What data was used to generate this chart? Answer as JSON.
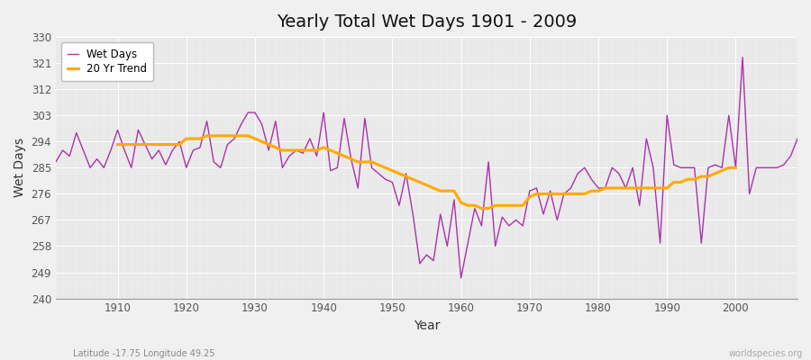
{
  "title": "Yearly Total Wet Days 1901 - 2009",
  "xlabel": "Year",
  "ylabel": "Wet Days",
  "footnote_left": "Latitude -17.75 Longitude 49.25",
  "footnote_right": "worldspecies.org",
  "ylim": [
    240,
    330
  ],
  "yticks": [
    240,
    249,
    258,
    267,
    276,
    285,
    294,
    303,
    312,
    321,
    330
  ],
  "xlim": [
    1901,
    2009
  ],
  "xticks": [
    1910,
    1920,
    1930,
    1940,
    1950,
    1960,
    1970,
    1980,
    1990,
    2000
  ],
  "wet_days_color": "#aa33aa",
  "trend_color": "#ffaa00",
  "background_color": "#e8e8e8",
  "fig_color": "#f0f0f0",
  "legend_wet": "Wet Days",
  "legend_trend": "20 Yr Trend",
  "years": [
    1901,
    1902,
    1903,
    1904,
    1905,
    1906,
    1907,
    1908,
    1909,
    1910,
    1911,
    1912,
    1913,
    1914,
    1915,
    1916,
    1917,
    1918,
    1919,
    1920,
    1921,
    1922,
    1923,
    1924,
    1925,
    1926,
    1927,
    1928,
    1929,
    1930,
    1931,
    1932,
    1933,
    1934,
    1935,
    1936,
    1937,
    1938,
    1939,
    1940,
    1941,
    1942,
    1943,
    1944,
    1945,
    1946,
    1947,
    1948,
    1949,
    1950,
    1951,
    1952,
    1953,
    1954,
    1955,
    1956,
    1957,
    1958,
    1959,
    1960,
    1961,
    1962,
    1963,
    1964,
    1965,
    1966,
    1967,
    1968,
    1969,
    1970,
    1971,
    1972,
    1973,
    1974,
    1975,
    1976,
    1977,
    1978,
    1979,
    1980,
    1981,
    1982,
    1983,
    1984,
    1985,
    1986,
    1987,
    1988,
    1989,
    1990,
    1991,
    1992,
    1993,
    1994,
    1995,
    1996,
    1997,
    1998,
    1999,
    2000,
    2001,
    2002,
    2003,
    2004,
    2005,
    2006,
    2007,
    2008,
    2009
  ],
  "wet_days": [
    287,
    291,
    289,
    297,
    291,
    285,
    288,
    285,
    291,
    298,
    291,
    285,
    298,
    293,
    288,
    291,
    286,
    291,
    294,
    285,
    291,
    292,
    301,
    287,
    285,
    293,
    295,
    300,
    304,
    304,
    300,
    291,
    301,
    285,
    289,
    291,
    290,
    295,
    289,
    304,
    284,
    285,
    302,
    288,
    278,
    302,
    285,
    283,
    281,
    280,
    272,
    283,
    269,
    252,
    255,
    253,
    269,
    258,
    274,
    247,
    259,
    271,
    265,
    287,
    258,
    268,
    265,
    267,
    265,
    277,
    278,
    269,
    277,
    267,
    276,
    278,
    283,
    285,
    281,
    278,
    278,
    285,
    283,
    278,
    285,
    272,
    295,
    285,
    259,
    303,
    286,
    285,
    285,
    285,
    259,
    285,
    286,
    285,
    303,
    285,
    323,
    276,
    285,
    285,
    285,
    285,
    286,
    289,
    295
  ],
  "trend_years": [
    1910,
    1911,
    1912,
    1913,
    1914,
    1915,
    1916,
    1917,
    1918,
    1919,
    1920,
    1921,
    1922,
    1923,
    1924,
    1925,
    1926,
    1927,
    1928,
    1929,
    1930,
    1931,
    1932,
    1933,
    1934,
    1935,
    1936,
    1937,
    1938,
    1939,
    1940,
    1941,
    1942,
    1943,
    1944,
    1945,
    1946,
    1947,
    1948,
    1949,
    1950,
    1951,
    1952,
    1953,
    1954,
    1955,
    1956,
    1957,
    1958,
    1959,
    1960,
    1961,
    1962,
    1963,
    1964,
    1965,
    1966,
    1967,
    1968,
    1969,
    1970,
    1971,
    1972,
    1973,
    1974,
    1975,
    1976,
    1977,
    1978,
    1979,
    1980,
    1981,
    1982,
    1983,
    1984,
    1985,
    1986,
    1987,
    1988,
    1989,
    1990,
    1991,
    1992,
    1993,
    1994,
    1995,
    1996,
    1997,
    1998,
    1999,
    2000
  ],
  "trend_values": [
    293,
    293,
    293,
    293,
    293,
    293,
    293,
    293,
    293,
    293,
    295,
    295,
    295,
    296,
    296,
    296,
    296,
    296,
    296,
    296,
    295,
    294,
    293,
    292,
    291,
    291,
    291,
    291,
    291,
    291,
    292,
    291,
    290,
    289,
    288,
    287,
    287,
    287,
    286,
    285,
    284,
    283,
    282,
    281,
    280,
    279,
    278,
    277,
    277,
    277,
    273,
    272,
    272,
    271,
    271,
    272,
    272,
    272,
    272,
    272,
    275,
    276,
    276,
    276,
    276,
    276,
    276,
    276,
    276,
    277,
    277,
    278,
    278,
    278,
    278,
    278,
    278,
    278,
    278,
    278,
    278,
    280,
    280,
    281,
    281,
    282,
    282,
    283,
    284,
    285,
    285
  ]
}
